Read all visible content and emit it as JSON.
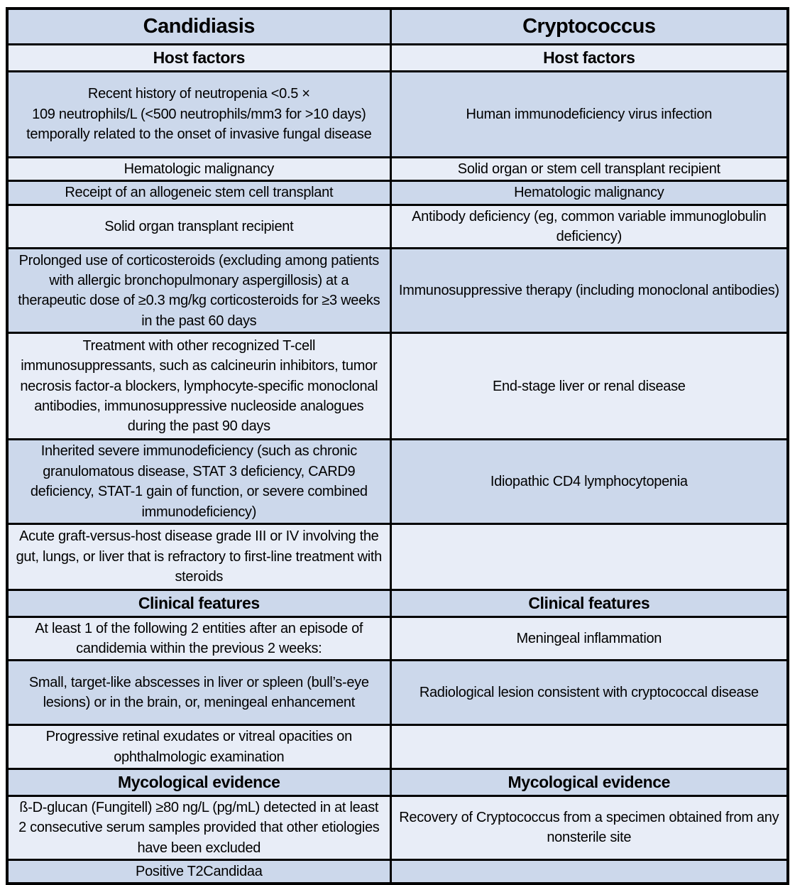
{
  "table": {
    "columns": [
      "Candidiasis",
      "Cryptococcus"
    ],
    "rows": [
      {
        "type": "section",
        "left": "Host factors",
        "right": "Host factors"
      },
      {
        "type": "body",
        "left": "Recent history of neutropenia <0.5 ×\n109 neutrophils/L (<500 neutrophils/mm3 for >10 days) temporally related to the onset of invasive fungal disease",
        "right": "Human immunodeficiency virus infection"
      },
      {
        "type": "body",
        "left": "Hematologic malignancy",
        "right": "Solid organ or stem cell transplant recipient"
      },
      {
        "type": "body",
        "left": "Receipt of an allogeneic stem cell transplant",
        "right": "Hematologic malignancy"
      },
      {
        "type": "body",
        "left": "Solid organ transplant recipient",
        "right": "Antibody deficiency (eg, common variable immunoglobulin deficiency)"
      },
      {
        "type": "body",
        "left": "Prolonged use of corticosteroids (excluding among patients with allergic bronchopulmonary aspergillosis) at a therapeutic dose of ≥0.3 mg/kg corticosteroids for ≥3 weeks in the past 60 days",
        "right": "Immunosuppressive therapy (including monoclonal antibodies)"
      },
      {
        "type": "body",
        "left": "Treatment with other recognized T-cell immunosuppressants, such as calcineurin inhibitors, tumor necrosis factor-a blockers, lymphocyte-specific monoclonal antibodies, immunosuppressive nucleoside analogues during the past 90 days",
        "right": "End-stage liver or renal disease"
      },
      {
        "type": "body",
        "left": "Inherited severe immunodeficiency (such as chronic granulomatous disease, STAT 3 deficiency, CARD9 deficiency, STAT-1 gain of function, or severe combined immunodeficiency)",
        "right": "Idiopathic CD4 lymphocytopenia"
      },
      {
        "type": "body",
        "left": "Acute graft-versus-host disease grade III or IV involving the gut, lungs, or liver that is refractory to first-line treatment with steroids",
        "right": ""
      },
      {
        "type": "section",
        "left": "Clinical features",
        "right": "Clinical features"
      },
      {
        "type": "body",
        "left": "At least 1 of the following 2 entities after an episode of candidemia within the previous 2 weeks:",
        "right": "Meningeal inflammation"
      },
      {
        "type": "body",
        "left": "Small, target-like abscesses in liver or spleen (bull’s-eye lesions) or in the brain, or, meningeal enhancement",
        "right": "Radiological lesion consistent with cryptococcal disease"
      },
      {
        "type": "body",
        "left": "Progressive retinal exudates or vitreal opacities on ophthalmologic examination",
        "right": ""
      },
      {
        "type": "section",
        "left": "Mycological evidence",
        "right": "Mycological evidence"
      },
      {
        "type": "body",
        "left": "ß-D-glucan (Fungitell) ≥80 ng/L (pg/mL) detected in at least 2 consecutive serum samples provided that other etiologies have been excluded",
        "right": "Recovery of Cryptococcus from a specimen obtained from any nonsterile site"
      },
      {
        "type": "body",
        "left": "Positive T2Candidaa",
        "right": ""
      }
    ]
  },
  "colors": {
    "row_dark": "#ccd8eb",
    "row_light": "#e8edf7",
    "border": "#000000",
    "text": "#000000"
  }
}
